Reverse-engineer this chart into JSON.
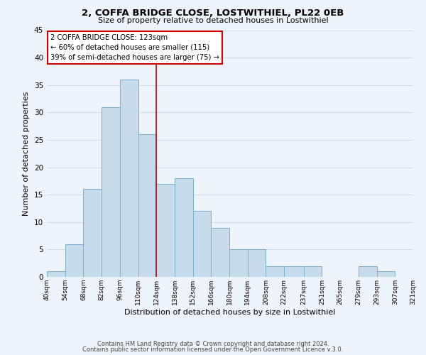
{
  "title": "2, COFFA BRIDGE CLOSE, LOSTWITHIEL, PL22 0EB",
  "subtitle": "Size of property relative to detached houses in Lostwithiel",
  "xlabel": "Distribution of detached houses by size in Lostwithiel",
  "ylabel": "Number of detached properties",
  "bar_color": "#c6dcec",
  "bar_edge_color": "#7aaec8",
  "background_color": "#eef4fb",
  "grid_color": "#d0dce8",
  "vline_x": 124,
  "vline_color": "#cc0000",
  "annotation_lines": [
    "2 COFFA BRIDGE CLOSE: 123sqm",
    "← 60% of detached houses are smaller (115)",
    "39% of semi-detached houses are larger (75) →"
  ],
  "bin_edges": [
    40,
    54,
    68,
    82,
    96,
    110,
    124,
    138,
    152,
    166,
    180,
    194,
    208,
    222,
    237,
    251,
    265,
    279,
    293,
    307,
    321
  ],
  "bin_labels": [
    "40sqm",
    "54sqm",
    "68sqm",
    "82sqm",
    "96sqm",
    "110sqm",
    "124sqm",
    "138sqm",
    "152sqm",
    "166sqm",
    "180sqm",
    "194sqm",
    "208sqm",
    "222sqm",
    "237sqm",
    "251sqm",
    "265sqm",
    "279sqm",
    "293sqm",
    "307sqm",
    "321sqm"
  ],
  "counts": [
    1,
    6,
    16,
    31,
    36,
    26,
    17,
    18,
    12,
    9,
    5,
    5,
    2,
    2,
    2,
    0,
    0,
    2,
    1,
    0
  ],
  "ylim": [
    0,
    45
  ],
  "yticks": [
    0,
    5,
    10,
    15,
    20,
    25,
    30,
    35,
    40,
    45
  ],
  "footer_line1": "Contains HM Land Registry data © Crown copyright and database right 2024.",
  "footer_line2": "Contains public sector information licensed under the Open Government Licence v.3.0."
}
